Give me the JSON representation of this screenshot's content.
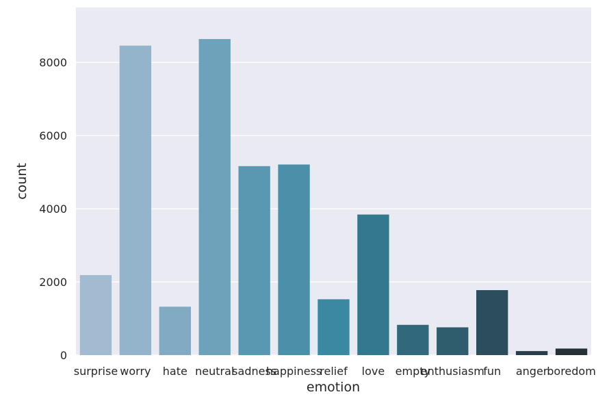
{
  "chart_data": {
    "type": "bar",
    "xlabel": "emotion",
    "ylabel": "count",
    "categories": [
      "surprise",
      "worry",
      "hate",
      "neutral",
      "sadness",
      "happiness",
      "relief",
      "love",
      "empty",
      "enthusiasm",
      "fun",
      "anger",
      "boredom"
    ],
    "values": [
      2187,
      8459,
      1323,
      8638,
      5165,
      5209,
      1526,
      3842,
      827,
      759,
      1776,
      110,
      179
    ],
    "ylim": [
      0,
      9500
    ],
    "yticks": [
      0,
      2000,
      4000,
      6000,
      8000
    ],
    "grid": true,
    "colors": [
      "#a3bbd1",
      "#93b4ca",
      "#82aac2",
      "#6da2ba",
      "#5a98b2",
      "#4b8fa9",
      "#3a88a1",
      "#33788d",
      "#31687c",
      "#2f5d6e",
      "#2c4e5c",
      "#283e4a",
      "#243238"
    ],
    "background": "#eaeaf2"
  }
}
